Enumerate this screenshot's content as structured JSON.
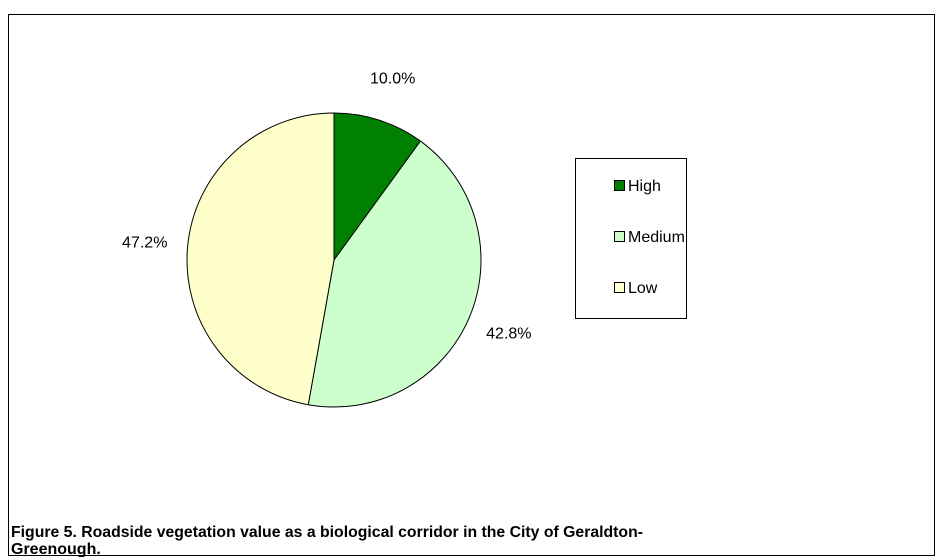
{
  "chart_data": {
    "type": "pie",
    "caption": [
      "Figure 5. Roadside vegetation value as a biological corridor in the City of Geraldton-",
      "Greenough."
    ],
    "categories": [
      "High",
      "Medium",
      "Low"
    ],
    "values": [
      10.0,
      42.8,
      47.2
    ],
    "value_labels": [
      "10.0%",
      "42.8%",
      "47.2%"
    ],
    "colors": [
      "#008000",
      "#ccffcc",
      "#ffffcc"
    ],
    "legend": "right"
  }
}
